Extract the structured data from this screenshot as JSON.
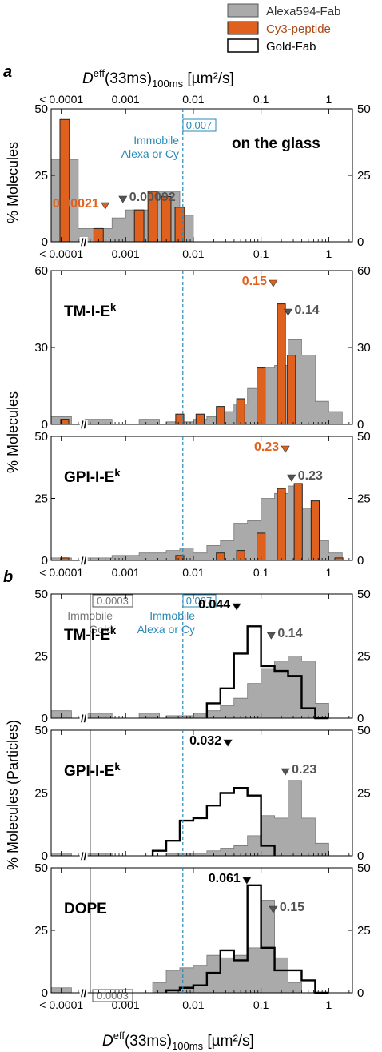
{
  "legend": {
    "items": [
      {
        "label": "Alexa594-Fab",
        "kind": "gray"
      },
      {
        "label": "Cy3-peptide",
        "kind": "orange"
      },
      {
        "label": "Gold-Fab",
        "kind": "outline"
      }
    ]
  },
  "colors": {
    "gray": "#aaaaaa",
    "orange": "#e0611e",
    "blue": "#2a8ab8",
    "dark": "#555555",
    "black": "#000000"
  },
  "section_labels": {
    "a": "a",
    "b": "b"
  },
  "axis_title_prefix": "D",
  "axis_title_sup": "eff",
  "axis_title_mid": "(33ms)",
  "axis_title_sub": "100ms",
  "axis_title_unit": " [µm²/s]",
  "ylabels": {
    "a_upper": "% Molecules",
    "a_lower": "% Molecules",
    "b": "% Molecules (Particles)"
  },
  "xtick_labels": [
    "< 0.0001",
    "0.001",
    "0.01",
    "0.1",
    "1"
  ],
  "x_break_mark": "//",
  "panel_label_sup": "k",
  "immobile": {
    "alexa_value": "0.007",
    "alexa_label_line1": "Immobile",
    "alexa_label_line2": "Alexa or Cy",
    "gold_value": "0.0003",
    "gold_label_line1": "Immobile",
    "gold_label_line2": "Gold"
  },
  "chart_data": [
    {
      "type": "bar",
      "panel": "a1",
      "label": "on the glass",
      "ylim": [
        0,
        50
      ],
      "yticks": [
        0,
        25,
        50
      ],
      "xlim_log10": [
        -4.1,
        0.35
      ],
      "xscale": "log",
      "series": [
        {
          "name": "Alexa594-Fab",
          "style": "gray",
          "edges_log10": [
            -4.1,
            -3.7,
            -3.2,
            -3.0,
            -2.8,
            -2.6,
            -2.4,
            -2.2,
            -2.0
          ],
          "values": [
            31,
            5,
            9,
            12,
            12,
            19,
            19,
            10
          ]
        },
        {
          "name": "Cy3-peptide",
          "style": "orange",
          "centers_log10": [
            -3.9,
            -3.4,
            -2.8,
            -2.6,
            -2.4,
            -2.2
          ],
          "values": [
            46,
            5,
            12,
            19,
            17,
            13
          ],
          "bar_width": 0.14
        },
        {
          "name": "Gold-Fab",
          "style": "outline",
          "edges_log10": [],
          "values": []
        }
      ],
      "annotations": [
        {
          "text": "0.00021",
          "x_log10": -3.68,
          "color": "orange",
          "marker_at_log10": -3.3
        },
        {
          "text": "0.00092",
          "x_log10": -3.04,
          "color": "dark",
          "marker_at_log10": -3.04
        }
      ]
    },
    {
      "type": "bar",
      "panel": "a2",
      "label": "TM-I-E",
      "ylim": [
        0,
        60
      ],
      "yticks": [
        0,
        30,
        60
      ],
      "xlim_log10": [
        -4.1,
        0.35
      ],
      "xscale": "log",
      "series": [
        {
          "name": "Alexa594-Fab",
          "style": "gray",
          "edges_log10": [
            -4.1,
            -3.8,
            -3.6,
            -3.2,
            -2.8,
            -2.5,
            -2.4,
            -2.2,
            -2.0,
            -1.8,
            -1.6,
            -1.4,
            -1.2,
            -1.0,
            -0.8,
            -0.6,
            -0.4,
            -0.2,
            0.0,
            0.2
          ],
          "values": [
            3,
            0,
            2,
            0,
            2,
            0,
            1,
            1,
            2,
            3,
            5,
            8,
            14,
            22,
            23,
            33,
            27,
            9,
            5
          ]
        },
        {
          "name": "Cy3-peptide",
          "style": "orange",
          "centers_log10": [
            -3.9,
            -2.2,
            -1.9,
            -1.6,
            -1.3,
            -1.0,
            -0.7,
            -0.55
          ],
          "values": [
            2,
            4,
            4,
            7,
            10,
            22,
            47,
            27
          ],
          "bar_width": 0.12
        },
        {
          "name": "Gold-Fab",
          "style": "outline",
          "edges_log10": [],
          "values": []
        }
      ],
      "annotations": [
        {
          "text": "0.15",
          "x_log10": -0.82,
          "color": "orange",
          "marker_at_log10": -0.82
        },
        {
          "text": "0.14",
          "x_log10": -0.85,
          "color": "dark",
          "marker_at_log10": -0.6
        }
      ]
    },
    {
      "type": "bar",
      "panel": "a3",
      "label": "GPI-I-E",
      "ylim": [
        0,
        50
      ],
      "yticks": [
        0,
        25,
        50
      ],
      "xlim_log10": [
        -4.1,
        0.35
      ],
      "xscale": "log",
      "series": [
        {
          "name": "Alexa594-Fab",
          "style": "gray",
          "edges_log10": [
            -4.1,
            -3.8,
            -3.6,
            -3.2,
            -3.0,
            -2.8,
            -2.6,
            -2.4,
            -2.2,
            -2.0,
            -1.8,
            -1.6,
            -1.4,
            -1.2,
            -1.0,
            -0.8,
            -0.6,
            -0.4,
            -0.2,
            0.0,
            0.2
          ],
          "values": [
            1,
            0,
            1,
            2,
            2,
            3,
            3,
            4,
            5,
            3,
            6,
            8,
            15,
            16,
            25,
            27,
            30,
            21,
            8,
            3
          ]
        },
        {
          "name": "Cy3-peptide",
          "style": "orange",
          "centers_log10": [
            -3.9,
            -2.2,
            -1.6,
            -1.3,
            -1.0,
            -0.7,
            -0.45,
            -0.2,
            0.15
          ],
          "values": [
            1,
            2,
            3,
            4,
            11,
            29,
            31,
            24,
            1
          ],
          "bar_width": 0.12
        },
        {
          "name": "Gold-Fab",
          "style": "outline",
          "edges_log10": [],
          "values": []
        }
      ],
      "annotations": [
        {
          "text": "0.23",
          "x_log10": -0.64,
          "color": "orange",
          "marker_at_log10": -0.64
        },
        {
          "text": "0.23",
          "x_log10": -0.64,
          "color": "dark",
          "marker_at_log10": -0.55
        }
      ]
    },
    {
      "type": "bar",
      "panel": "b1",
      "label": "TM-I-E",
      "ylim": [
        0,
        50
      ],
      "yticks": [
        0,
        25,
        50
      ],
      "xlim_log10": [
        -4.1,
        0.35
      ],
      "xscale": "log",
      "series": [
        {
          "name": "Alexa594-Fab",
          "style": "gray",
          "edges_log10": [
            -4.1,
            -3.8,
            -3.6,
            -3.2,
            -2.8,
            -2.5,
            -2.4,
            -2.2,
            -2.0,
            -1.8,
            -1.6,
            -1.4,
            -1.2,
            -1.0,
            -0.8,
            -0.6,
            -0.4,
            -0.2,
            0.0,
            0.2
          ],
          "values": [
            3,
            0,
            2,
            0,
            2,
            0,
            1,
            1,
            2,
            3,
            5,
            8,
            14,
            20,
            23,
            25,
            23,
            6,
            0
          ]
        },
        {
          "name": "Gold-Fab",
          "style": "outline",
          "edges_log10": [
            -1.8,
            -1.6,
            -1.4,
            -1.2,
            -1.0,
            -0.8,
            -0.6,
            -0.4,
            -0.2,
            0.0
          ],
          "values": [
            6,
            12,
            26,
            37,
            21,
            19,
            17,
            4,
            0
          ]
        }
      ],
      "annotations": [
        {
          "text": "0.044",
          "x_log10": -1.36,
          "color": "black",
          "marker_at_log10": -1.36
        },
        {
          "text": "0.14",
          "x_log10": -0.85,
          "color": "dark",
          "marker_at_log10": -0.85
        }
      ]
    },
    {
      "type": "bar",
      "panel": "b2",
      "label": "GPI-I-E",
      "ylim": [
        0,
        50
      ],
      "yticks": [
        0,
        25,
        50
      ],
      "xlim_log10": [
        -4.1,
        0.35
      ],
      "xscale": "log",
      "series": [
        {
          "name": "Alexa594-Fab",
          "style": "gray",
          "edges_log10": [
            -4.1,
            -3.8,
            -3.6,
            -3.2,
            -3.0,
            -2.8,
            -2.6,
            -2.4,
            -2.2,
            -2.0,
            -1.8,
            -1.6,
            -1.4,
            -1.2,
            -1.0,
            -0.8,
            -0.6,
            -0.4,
            -0.2,
            0.0,
            0.2
          ],
          "values": [
            1,
            0,
            1,
            0,
            0,
            0,
            0,
            1,
            1,
            1,
            2,
            3,
            4,
            8,
            16,
            15,
            30,
            15,
            5,
            0
          ]
        },
        {
          "name": "Gold-Fab",
          "style": "outline",
          "edges_log10": [
            -2.6,
            -2.4,
            -2.2,
            -2.0,
            -1.8,
            -1.6,
            -1.4,
            -1.2,
            -1.0,
            -0.8
          ],
          "values": [
            2,
            6,
            14,
            15,
            20,
            25,
            27,
            24,
            4
          ]
        }
      ],
      "annotations": [
        {
          "text": "0.032",
          "x_log10": -1.49,
          "color": "black",
          "marker_at_log10": -1.49
        },
        {
          "text": "0.23",
          "x_log10": -0.64,
          "color": "dark",
          "marker_at_log10": -0.64
        }
      ]
    },
    {
      "type": "bar",
      "panel": "b3",
      "label": "DOPE",
      "ylim": [
        0,
        50
      ],
      "yticks": [
        0,
        25,
        50
      ],
      "xlim_log10": [
        -4.1,
        0.35
      ],
      "xscale": "log",
      "series": [
        {
          "name": "Alexa594-Fab",
          "style": "gray",
          "edges_log10": [
            -4.1,
            -3.8,
            -2.6,
            -2.4,
            -2.2,
            -2.0,
            -1.8,
            -1.6,
            -1.4,
            -1.2,
            -1.0,
            -0.8,
            -0.6,
            -0.4,
            -0.2
          ],
          "values": [
            2,
            0,
            4,
            9,
            10,
            11,
            15,
            14,
            15,
            18,
            37,
            14,
            4,
            0
          ]
        },
        {
          "name": "Gold-Fab",
          "style": "outline",
          "edges_log10": [
            -2.4,
            -2.2,
            -2.0,
            -1.8,
            -1.6,
            -1.4,
            -1.2,
            -1.0,
            -0.8,
            -0.6,
            -0.4,
            -0.2,
            0.0
          ],
          "values": [
            1,
            2,
            3,
            8,
            17,
            13,
            43,
            18,
            9,
            9,
            5,
            0
          ]
        }
      ],
      "annotations": [
        {
          "text": "0.061",
          "x_log10": -1.21,
          "color": "black",
          "marker_at_log10": -1.21
        },
        {
          "text": "0.15",
          "x_log10": -0.82,
          "color": "dark",
          "marker_at_log10": -0.82
        }
      ]
    }
  ]
}
